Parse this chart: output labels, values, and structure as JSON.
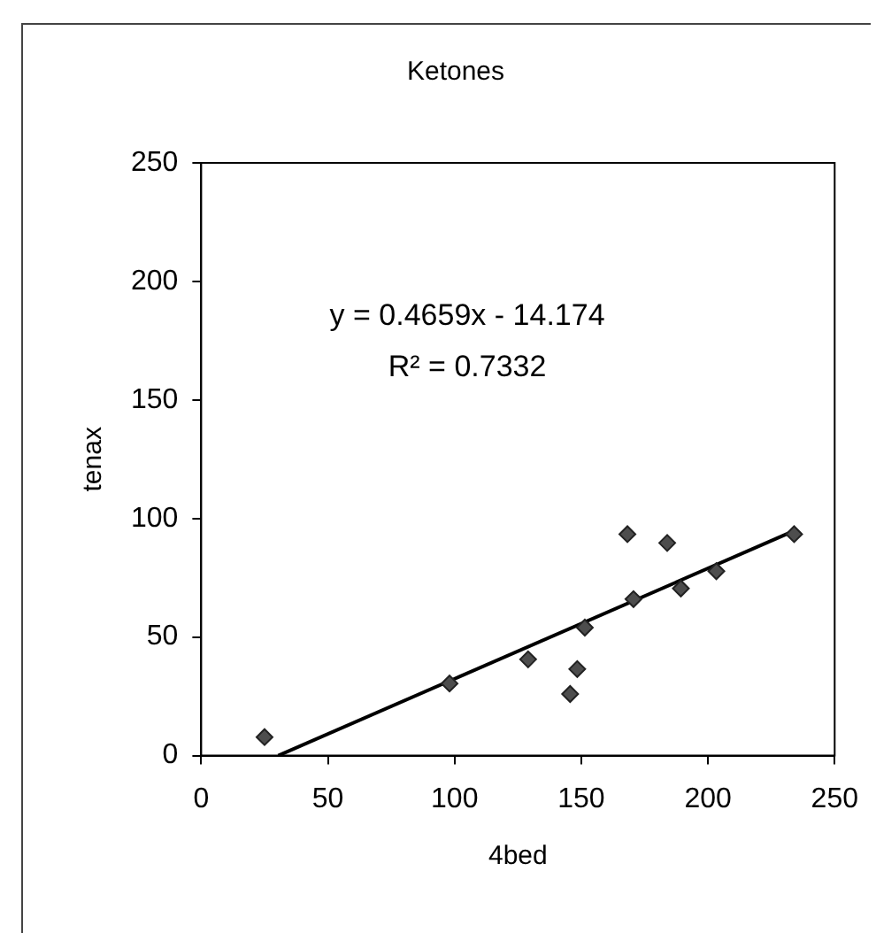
{
  "chart_data": {
    "type": "scatter",
    "title": "Ketones",
    "xlabel": "4bed",
    "ylabel": "tenax",
    "xlim": [
      0,
      250
    ],
    "xticks": [
      0,
      50,
      100,
      150,
      200,
      250
    ],
    "ylim": [
      0,
      250
    ],
    "yticks": [
      0,
      50,
      100,
      150,
      200,
      250
    ],
    "grid": false,
    "legend": false,
    "marker": "diamond",
    "annotations": [
      "y = 0.4659x - 14.174",
      "R² = 0.7332"
    ],
    "series": [
      {
        "type": "scatter",
        "color": "#4d4d4d",
        "x": [
          25,
          98,
          129,
          145.6,
          148.4,
          151.4,
          168.2,
          170.6,
          183.9,
          189.3,
          203.3,
          234
        ],
        "values": [
          7.8,
          30.4,
          40.6,
          26,
          36.5,
          54,
          93.4,
          66,
          89.7,
          70.5,
          77.8,
          93.4
        ]
      },
      {
        "type": "line",
        "color": "#000000",
        "marker": "none",
        "line_style": "solid",
        "x": [
          30.4,
          234
        ],
        "values": [
          0,
          94.8
        ]
      }
    ]
  }
}
